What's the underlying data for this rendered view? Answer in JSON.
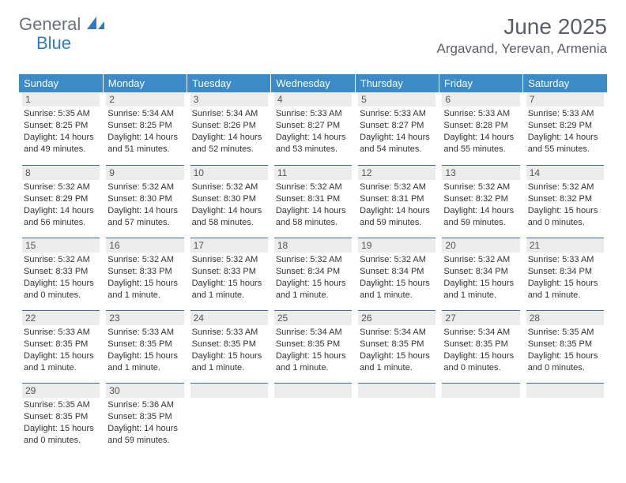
{
  "logo": {
    "part1": "General",
    "part2": "Blue"
  },
  "title": "June 2025",
  "location": "Argavand, Yerevan, Armenia",
  "colors": {
    "header_bg": "#3b8bc9",
    "header_text": "#ffffff",
    "daynum_bg": "#ececec",
    "border": "#3b6fa0",
    "logo_gray": "#6b7278",
    "logo_blue": "#2f7bbf",
    "text": "#333333",
    "title_text": "#5a5f66"
  },
  "weekdays": [
    "Sunday",
    "Monday",
    "Tuesday",
    "Wednesday",
    "Thursday",
    "Friday",
    "Saturday"
  ],
  "days": [
    {
      "n": 1,
      "sr": "5:35 AM",
      "ss": "8:25 PM",
      "dl": "14 hours and 49 minutes."
    },
    {
      "n": 2,
      "sr": "5:34 AM",
      "ss": "8:25 PM",
      "dl": "14 hours and 51 minutes."
    },
    {
      "n": 3,
      "sr": "5:34 AM",
      "ss": "8:26 PM",
      "dl": "14 hours and 52 minutes."
    },
    {
      "n": 4,
      "sr": "5:33 AM",
      "ss": "8:27 PM",
      "dl": "14 hours and 53 minutes."
    },
    {
      "n": 5,
      "sr": "5:33 AM",
      "ss": "8:27 PM",
      "dl": "14 hours and 54 minutes."
    },
    {
      "n": 6,
      "sr": "5:33 AM",
      "ss": "8:28 PM",
      "dl": "14 hours and 55 minutes."
    },
    {
      "n": 7,
      "sr": "5:33 AM",
      "ss": "8:29 PM",
      "dl": "14 hours and 55 minutes."
    },
    {
      "n": 8,
      "sr": "5:32 AM",
      "ss": "8:29 PM",
      "dl": "14 hours and 56 minutes."
    },
    {
      "n": 9,
      "sr": "5:32 AM",
      "ss": "8:30 PM",
      "dl": "14 hours and 57 minutes."
    },
    {
      "n": 10,
      "sr": "5:32 AM",
      "ss": "8:30 PM",
      "dl": "14 hours and 58 minutes."
    },
    {
      "n": 11,
      "sr": "5:32 AM",
      "ss": "8:31 PM",
      "dl": "14 hours and 58 minutes."
    },
    {
      "n": 12,
      "sr": "5:32 AM",
      "ss": "8:31 PM",
      "dl": "14 hours and 59 minutes."
    },
    {
      "n": 13,
      "sr": "5:32 AM",
      "ss": "8:32 PM",
      "dl": "14 hours and 59 minutes."
    },
    {
      "n": 14,
      "sr": "5:32 AM",
      "ss": "8:32 PM",
      "dl": "15 hours and 0 minutes."
    },
    {
      "n": 15,
      "sr": "5:32 AM",
      "ss": "8:33 PM",
      "dl": "15 hours and 0 minutes."
    },
    {
      "n": 16,
      "sr": "5:32 AM",
      "ss": "8:33 PM",
      "dl": "15 hours and 1 minute."
    },
    {
      "n": 17,
      "sr": "5:32 AM",
      "ss": "8:33 PM",
      "dl": "15 hours and 1 minute."
    },
    {
      "n": 18,
      "sr": "5:32 AM",
      "ss": "8:34 PM",
      "dl": "15 hours and 1 minute."
    },
    {
      "n": 19,
      "sr": "5:32 AM",
      "ss": "8:34 PM",
      "dl": "15 hours and 1 minute."
    },
    {
      "n": 20,
      "sr": "5:32 AM",
      "ss": "8:34 PM",
      "dl": "15 hours and 1 minute."
    },
    {
      "n": 21,
      "sr": "5:33 AM",
      "ss": "8:34 PM",
      "dl": "15 hours and 1 minute."
    },
    {
      "n": 22,
      "sr": "5:33 AM",
      "ss": "8:35 PM",
      "dl": "15 hours and 1 minute."
    },
    {
      "n": 23,
      "sr": "5:33 AM",
      "ss": "8:35 PM",
      "dl": "15 hours and 1 minute."
    },
    {
      "n": 24,
      "sr": "5:33 AM",
      "ss": "8:35 PM",
      "dl": "15 hours and 1 minute."
    },
    {
      "n": 25,
      "sr": "5:34 AM",
      "ss": "8:35 PM",
      "dl": "15 hours and 1 minute."
    },
    {
      "n": 26,
      "sr": "5:34 AM",
      "ss": "8:35 PM",
      "dl": "15 hours and 1 minute."
    },
    {
      "n": 27,
      "sr": "5:34 AM",
      "ss": "8:35 PM",
      "dl": "15 hours and 0 minutes."
    },
    {
      "n": 28,
      "sr": "5:35 AM",
      "ss": "8:35 PM",
      "dl": "15 hours and 0 minutes."
    },
    {
      "n": 29,
      "sr": "5:35 AM",
      "ss": "8:35 PM",
      "dl": "15 hours and 0 minutes."
    },
    {
      "n": 30,
      "sr": "5:36 AM",
      "ss": "8:35 PM",
      "dl": "14 hours and 59 minutes."
    }
  ],
  "labels": {
    "sunrise": "Sunrise:",
    "sunset": "Sunset:",
    "daylight": "Daylight:"
  },
  "layout": {
    "start_weekday": 0,
    "rows": 5,
    "cols": 7
  }
}
